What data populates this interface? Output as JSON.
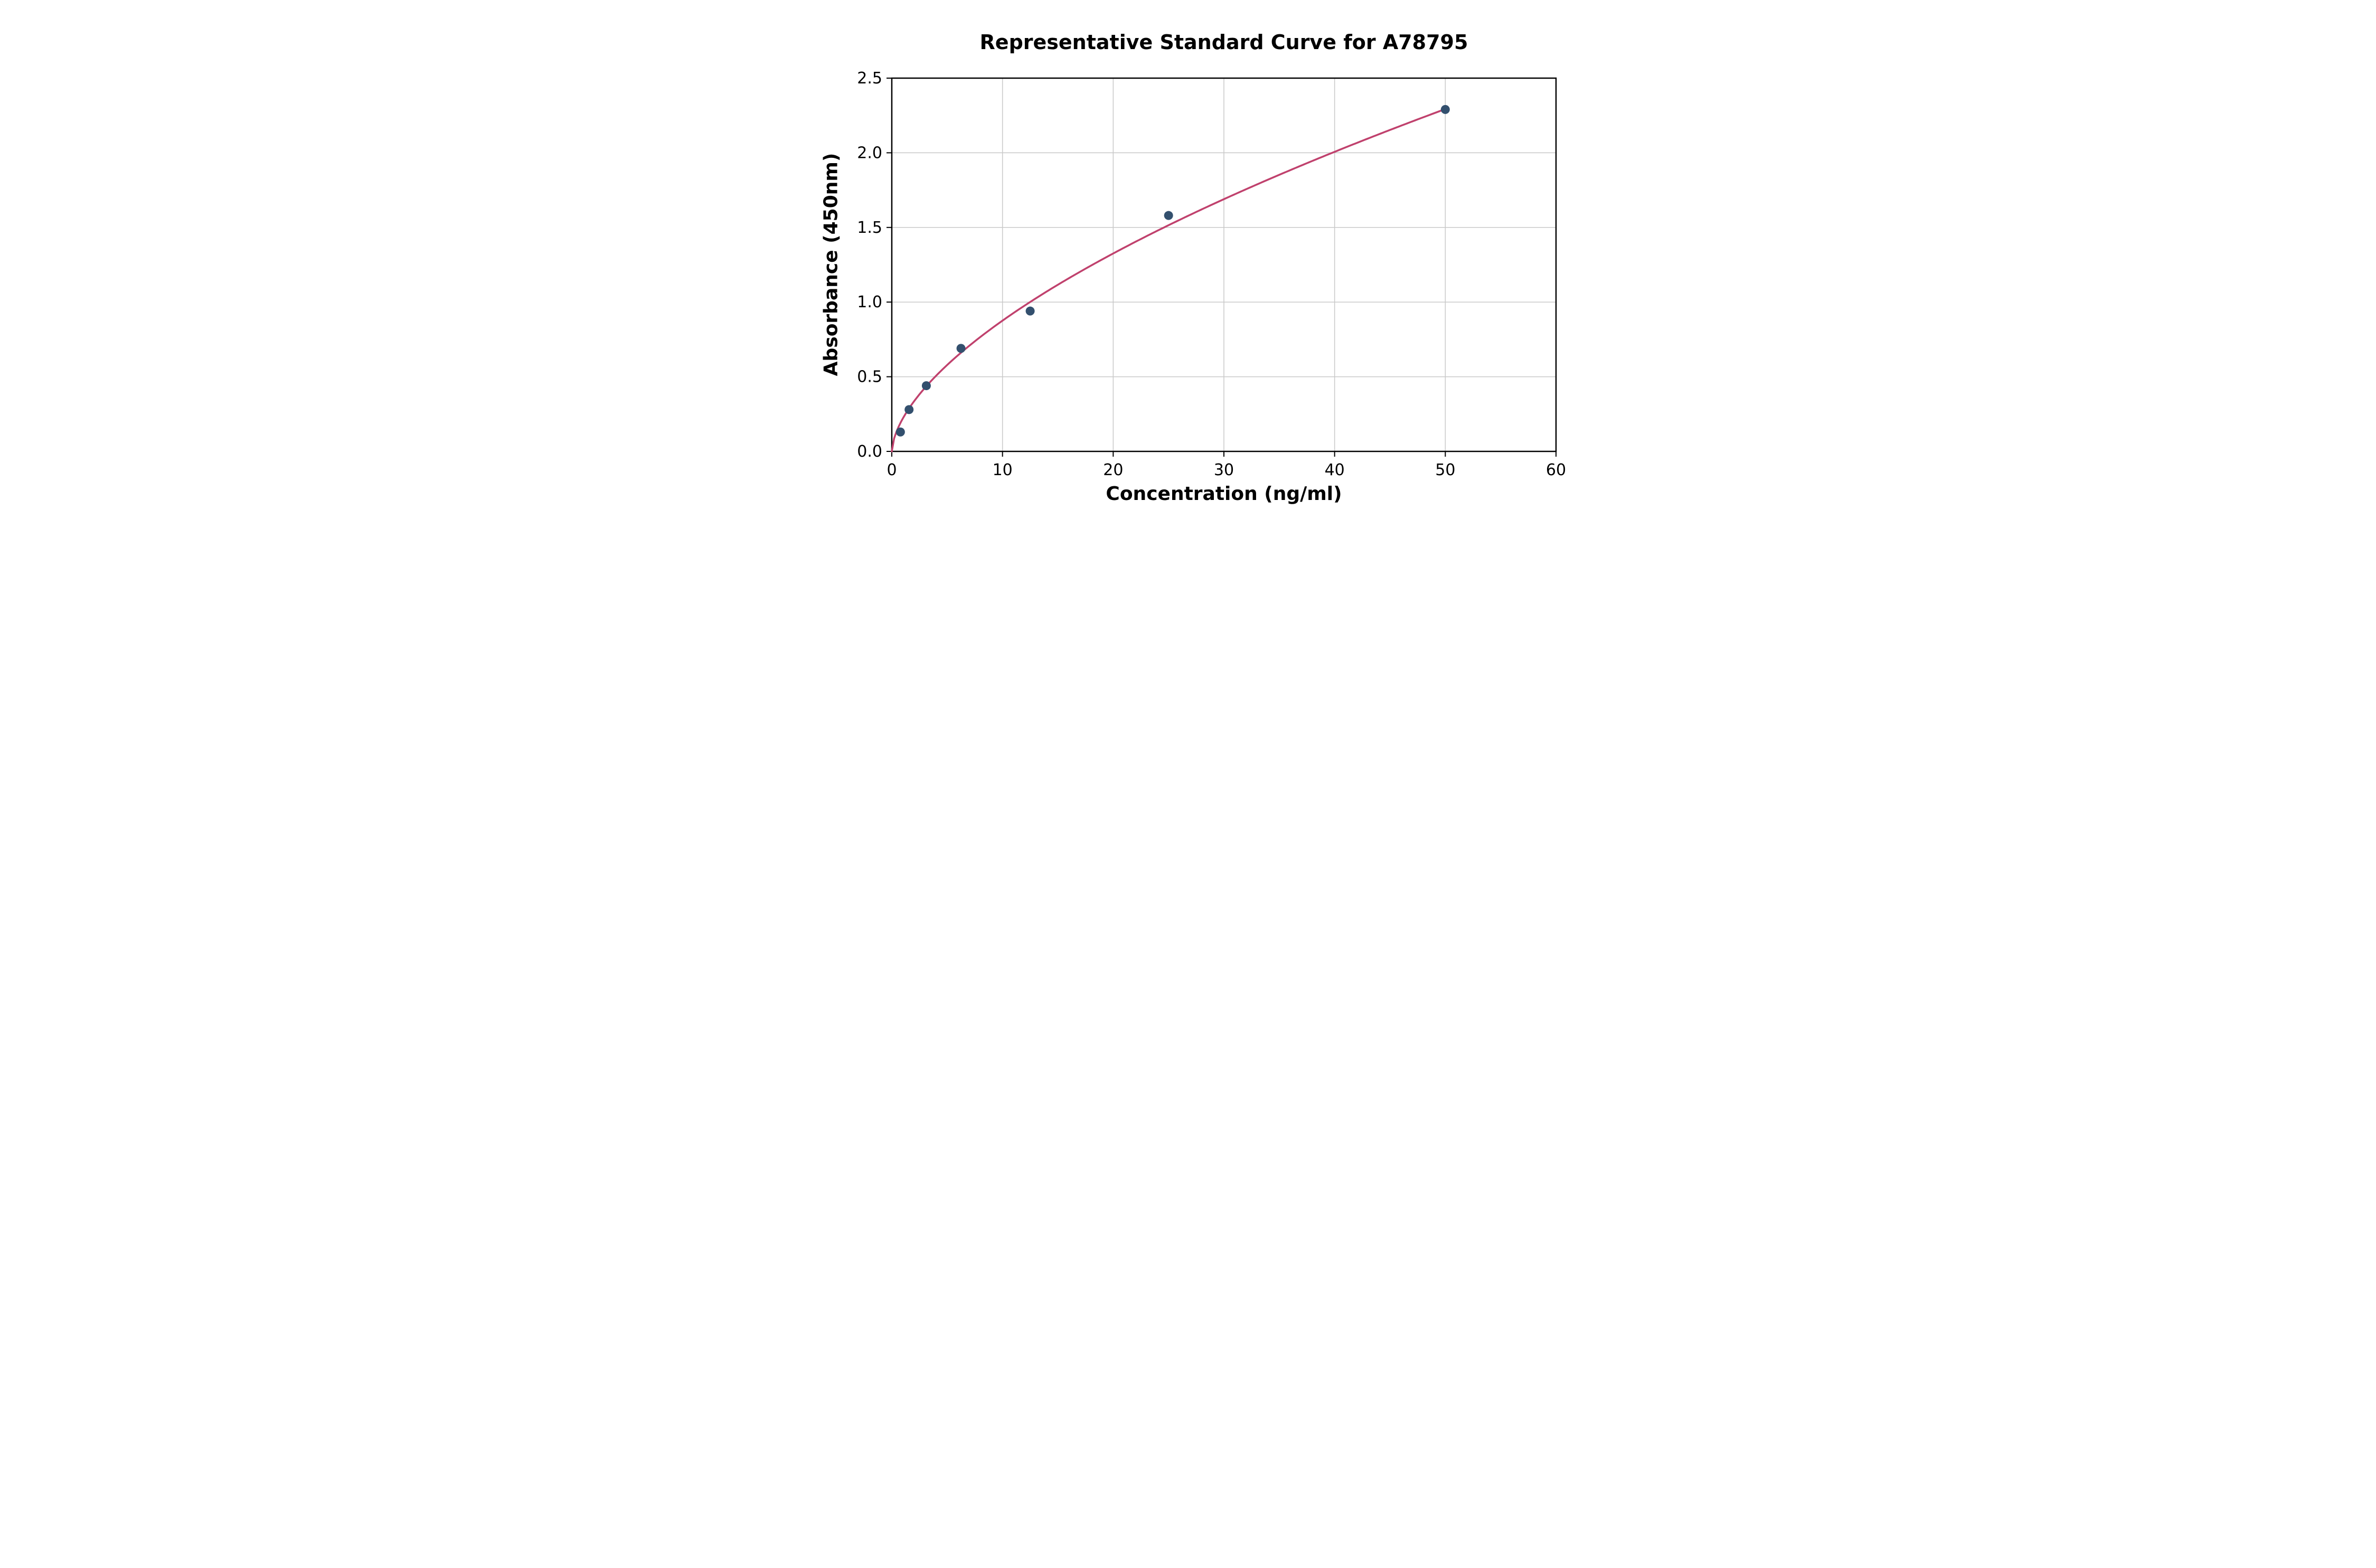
{
  "chart_data": {
    "type": "scatter",
    "title": "Representative Standard Curve for A78795",
    "xlabel": "Concentration (ng/ml)",
    "ylabel": "Absorbance (450nm)",
    "xlim": [
      0,
      60
    ],
    "ylim": [
      0,
      2.5
    ],
    "xticks": [
      0,
      10,
      20,
      30,
      40,
      50,
      60
    ],
    "xtick_labels": [
      "0",
      "10",
      "20",
      "30",
      "40",
      "50",
      "60"
    ],
    "yticks": [
      0.0,
      0.5,
      1.0,
      1.5,
      2.0,
      2.5
    ],
    "ytick_labels": [
      "0.0",
      "0.5",
      "1.0",
      "1.5",
      "2.0",
      "2.5"
    ],
    "grid": true,
    "legend": "none",
    "points": [
      {
        "x": 0.78,
        "y": 0.13
      },
      {
        "x": 1.56,
        "y": 0.28
      },
      {
        "x": 3.12,
        "y": 0.44
      },
      {
        "x": 6.25,
        "y": 0.69
      },
      {
        "x": 12.5,
        "y": 0.94
      },
      {
        "x": 25,
        "y": 1.58
      },
      {
        "x": 50,
        "y": 2.29
      }
    ],
    "fit_curve": {
      "type": "power",
      "a": 0.221,
      "b": 0.598,
      "x_range": [
        0,
        50
      ]
    },
    "colors": {
      "points": "#33506e",
      "curve": "#c0416d",
      "grid": "#c9c9c9",
      "frame": "#000000",
      "text": "#000000",
      "background": "#ffffff"
    }
  }
}
